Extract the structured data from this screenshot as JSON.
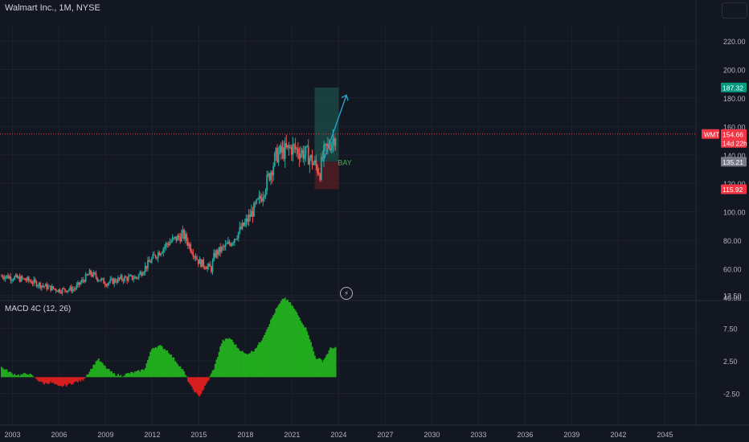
{
  "header": {
    "title": "Walmart Inc., 1M, NYSE"
  },
  "macd": {
    "title": "MACD 4C (12, 26)"
  },
  "colors": {
    "background": "#131722",
    "grid": "#1e222d",
    "up": "#26a69a",
    "down": "#ef5350",
    "macd_pos": "#22ab1f",
    "macd_neg": "#d61f1f",
    "target_zone": "#1e4d4a",
    "stop_zone": "#5a1e24",
    "arrow": "#26a3c7",
    "label_text": "#4caf50",
    "price_line": "#f23645",
    "axis_text": "#b2b5be"
  },
  "annotations": {
    "trade_label": "BAY"
  },
  "badges": {
    "target": "187.32",
    "current_symbol": "WMT",
    "current_price": "154.66",
    "countdown": "14d 22h",
    "entry": "135.21",
    "stop": "115.92"
  },
  "chart_data": [
    {
      "type": "candlestick",
      "title": "Walmart Inc., 1M, NYSE",
      "x": [
        2002.5,
        2003,
        2004,
        2005,
        2006,
        2007,
        2008,
        2009,
        2010,
        2011,
        2012,
        2013,
        2014,
        2015,
        2015.8,
        2016,
        2017,
        2018,
        2019,
        2020,
        2021,
        2022,
        2022.8,
        2023,
        2023.8
      ],
      "close": [
        55,
        54,
        52,
        48,
        45,
        46,
        57,
        50,
        53,
        54,
        67,
        78,
        84,
        65,
        60,
        70,
        78,
        92,
        110,
        140,
        145,
        140,
        128,
        140,
        154.66
      ],
      "x_ticks": [
        "2003",
        "2006",
        "2009",
        "2012",
        "2015",
        "2018",
        "2021",
        "2024",
        "2027",
        "2030",
        "2033",
        "2036",
        "2039",
        "2042",
        "2045"
      ],
      "y_ticks": [
        "40.00",
        "60.00",
        "80.00",
        "100.00",
        "120.00",
        "140.00",
        "160.00",
        "180.00",
        "200.00",
        "220.00"
      ],
      "xlim": [
        2002.2,
        2047
      ],
      "ylim": [
        40,
        230
      ],
      "levels": {
        "target": 187.32,
        "current": 154.66,
        "entry": 135.21,
        "stop": 115.92
      }
    },
    {
      "type": "bar",
      "title": "MACD 4C (12, 26)",
      "x": [
        2002.3,
        2003,
        2003.5,
        2004,
        2004.5,
        2005,
        2005.5,
        2006,
        2006.5,
        2007,
        2007.5,
        2008,
        2008.5,
        2009,
        2009.5,
        2010,
        2010.5,
        2011,
        2011.5,
        2012,
        2012.5,
        2013,
        2013.5,
        2014,
        2014.5,
        2015,
        2015.5,
        2016,
        2016.5,
        2017,
        2017.5,
        2018,
        2018.5,
        2019,
        2019.5,
        2020,
        2020.5,
        2021,
        2021.5,
        2022,
        2022.5,
        2023,
        2023.5
      ],
      "values": [
        1.5,
        0.5,
        0.3,
        0.6,
        -0.2,
        -1.0,
        -0.8,
        -1.5,
        -1.2,
        -0.8,
        -0.5,
        1.0,
        2.8,
        1.5,
        0.5,
        0.2,
        0.6,
        0.8,
        1.2,
        4.5,
        4.8,
        4.0,
        2.5,
        1.0,
        -1.5,
        -3.0,
        -1.0,
        1.5,
        5.5,
        6.0,
        4.5,
        3.5,
        4.0,
        5.5,
        8.0,
        10.5,
        12.2,
        11.0,
        9.0,
        7.0,
        3.0,
        2.5,
        4.5
      ],
      "y_ticks": [
        "-2.50",
        "2.50",
        "7.50",
        "12.50"
      ],
      "ylim": [
        -3.5,
        13.5
      ]
    }
  ]
}
